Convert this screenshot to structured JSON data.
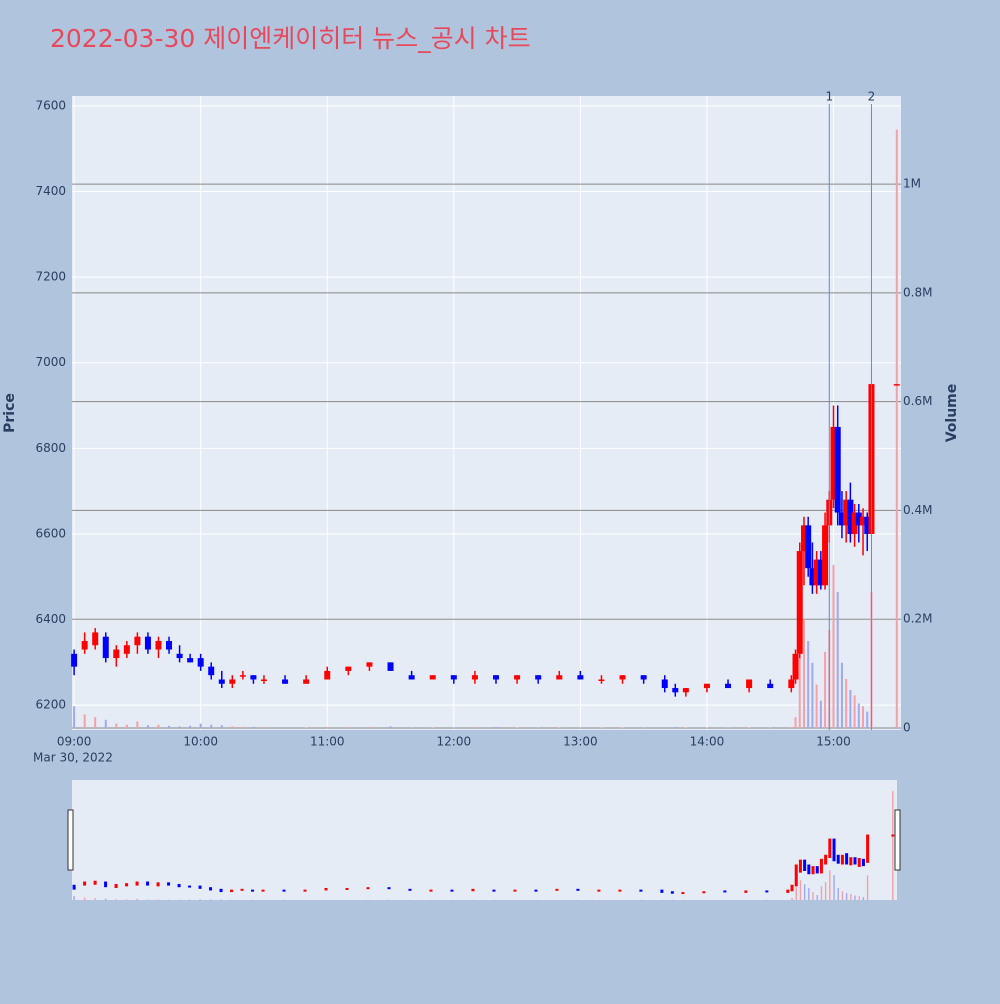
{
  "chart_data": {
    "type": "candlestick",
    "title": "2022-03-30 제이엔케이히터 뉴스_공시 차트",
    "x_date_label": "Mar 30, 2022",
    "ylabel": "Price",
    "y2label": "Volume",
    "increasing_color": "#ff0000",
    "decreasing_color": "#0000ff",
    "volume_increasing_color": "#f4a0a8",
    "volume_decreasing_color": "#a0a8f0",
    "x": [
      "09:00",
      "09:05",
      "09:10",
      "09:15",
      "09:20",
      "09:25",
      "09:30",
      "09:35",
      "09:40",
      "09:45",
      "09:50",
      "09:55",
      "10:00",
      "10:05",
      "10:10",
      "10:15",
      "10:20",
      "10:25",
      "10:30",
      "10:40",
      "10:50",
      "11:00",
      "11:10",
      "11:20",
      "11:30",
      "11:40",
      "11:50",
      "12:00",
      "12:10",
      "12:20",
      "12:30",
      "12:40",
      "12:50",
      "13:00",
      "13:10",
      "13:20",
      "13:30",
      "13:40",
      "13:45",
      "13:50",
      "14:00",
      "14:10",
      "14:20",
      "14:30",
      "14:40",
      "14:42",
      "14:44",
      "14:46",
      "14:48",
      "14:50",
      "14:52",
      "14:54",
      "14:56",
      "14:58",
      "15:00",
      "15:02",
      "15:04",
      "15:06",
      "15:08",
      "15:10",
      "15:12",
      "15:14",
      "15:16",
      "15:18",
      "15:30"
    ],
    "open": [
      6320,
      6330,
      6340,
      6360,
      6310,
      6320,
      6340,
      6360,
      6330,
      6350,
      6320,
      6310,
      6310,
      6290,
      6260,
      6250,
      6270,
      6270,
      6260,
      6260,
      6250,
      6260,
      6280,
      6290,
      6300,
      6270,
      6260,
      6270,
      6260,
      6270,
      6260,
      6270,
      6260,
      6270,
      6260,
      6260,
      6270,
      6260,
      6240,
      6230,
      6240,
      6250,
      6240,
      6250,
      6240,
      6260,
      6320,
      6560,
      6620,
      6520,
      6480,
      6540,
      6480,
      6620,
      6680,
      6850,
      6650,
      6620,
      6680,
      6600,
      6650,
      6620,
      6640,
      6600,
      6950
    ],
    "high": [
      6330,
      6370,
      6380,
      6370,
      6340,
      6350,
      6370,
      6370,
      6360,
      6360,
      6340,
      6320,
      6320,
      6300,
      6280,
      6270,
      6280,
      6270,
      6270,
      6270,
      6270,
      6290,
      6290,
      6300,
      6300,
      6280,
      6270,
      6270,
      6280,
      6270,
      6270,
      6270,
      6280,
      6280,
      6270,
      6270,
      6270,
      6270,
      6250,
      6240,
      6250,
      6260,
      6260,
      6260,
      6270,
      6330,
      6580,
      6640,
      6640,
      6580,
      6560,
      6560,
      6650,
      6700,
      6900,
      6900,
      6700,
      6700,
      6720,
      6670,
      6670,
      6660,
      6650,
      6950,
      6950
    ],
    "low": [
      6270,
      6320,
      6330,
      6300,
      6290,
      6310,
      6320,
      6320,
      6310,
      6320,
      6300,
      6300,
      6280,
      6260,
      6240,
      6240,
      6260,
      6250,
      6250,
      6250,
      6250,
      6260,
      6270,
      6280,
      6280,
      6260,
      6260,
      6250,
      6250,
      6250,
      6250,
      6250,
      6260,
      6260,
      6250,
      6250,
      6250,
      6230,
      6220,
      6220,
      6230,
      6240,
      6230,
      6240,
      6230,
      6250,
      6310,
      6480,
      6500,
      6460,
      6460,
      6470,
      6470,
      6580,
      6660,
      6620,
      6590,
      6580,
      6580,
      6570,
      6580,
      6550,
      6560,
      6600,
      6950
    ],
    "close": [
      6290,
      6350,
      6370,
      6310,
      6330,
      6340,
      6360,
      6330,
      6350,
      6330,
      6310,
      6300,
      6290,
      6270,
      6250,
      6260,
      6270,
      6260,
      6260,
      6250,
      6260,
      6280,
      6290,
      6300,
      6280,
      6260,
      6270,
      6260,
      6270,
      6260,
      6270,
      6260,
      6270,
      6260,
      6260,
      6270,
      6260,
      6240,
      6230,
      6240,
      6250,
      6240,
      6260,
      6240,
      6260,
      6320,
      6560,
      6620,
      6520,
      6480,
      6540,
      6480,
      6620,
      6680,
      6850,
      6650,
      6620,
      6680,
      6600,
      6650,
      6620,
      6640,
      6600,
      6950,
      6950
    ],
    "volume": [
      40000,
      25000,
      20000,
      15000,
      8000,
      6000,
      12000,
      5000,
      6000,
      4000,
      3000,
      4000,
      8000,
      6000,
      5000,
      3000,
      2000,
      2000,
      1500,
      1500,
      1000,
      2000,
      1500,
      2000,
      3000,
      1000,
      1000,
      1000,
      1500,
      2000,
      1000,
      1000,
      1000,
      1000,
      800,
      800,
      800,
      1500,
      2000,
      1000,
      800,
      800,
      1000,
      800,
      1500,
      20000,
      130000,
      200000,
      160000,
      120000,
      80000,
      50000,
      140000,
      180000,
      300000,
      250000,
      120000,
      90000,
      70000,
      60000,
      45000,
      40000,
      30000,
      250000,
      1100000
    ],
    "xlim": [
      "08:59",
      "15:32"
    ],
    "xticks": [
      "09:00",
      "10:00",
      "11:00",
      "12:00",
      "13:00",
      "14:00",
      "15:00"
    ],
    "ylim": [
      6142,
      7623
    ],
    "yticks": [
      6200,
      6400,
      6600,
      6800,
      7000,
      7200,
      7400,
      7600
    ],
    "y2lim": [
      -3700,
      1162000
    ],
    "y2ticks": [
      0,
      {
        "value": 200000,
        "label": "0.2M"
      },
      {
        "value": 400000,
        "label": "0.4M"
      },
      {
        "value": 600000,
        "label": "0.6M"
      },
      {
        "value": 800000,
        "label": "0.8M"
      },
      {
        "value": 1000000,
        "label": "1M"
      }
    ],
    "annotations": [
      {
        "x": "14:58",
        "text": "1"
      },
      {
        "x": "15:18",
        "text": "2"
      }
    ]
  }
}
